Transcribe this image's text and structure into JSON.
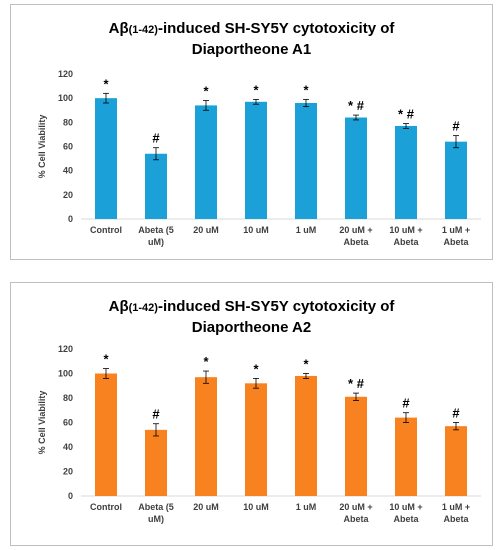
{
  "chart_data": [
    {
      "type": "bar",
      "title_prefix": "Aβ",
      "title_sub": "(1-42)",
      "title_rest": "-induced SH-SY5Y cytotoxicity of",
      "title_line2": "Diaportheone A1",
      "ylabel": "% Cell Viability",
      "ylim": [
        0,
        120
      ],
      "yticks": [
        "0",
        "20",
        "40",
        "60",
        "80",
        "100",
        "120"
      ],
      "categories": [
        [
          "Control"
        ],
        [
          "Abeta (5",
          "uM)"
        ],
        [
          "20 uM"
        ],
        [
          "10 uM"
        ],
        [
          "1 uM"
        ],
        [
          "20 uM +",
          "Abeta"
        ],
        [
          "10 uM +",
          "Abeta"
        ],
        [
          "1 uM +",
          "Abeta"
        ]
      ],
      "values": [
        100,
        54,
        94,
        97,
        96,
        84,
        77,
        64
      ],
      "errors": [
        4,
        5,
        4,
        2,
        3,
        2,
        2,
        5
      ],
      "annotations": [
        "*",
        "#",
        "*",
        "*",
        "*",
        "* #",
        "* #",
        "#"
      ],
      "color": "#1ba1d8",
      "grid": false
    },
    {
      "type": "bar",
      "title_prefix": "Aβ",
      "title_sub": "(1-42)",
      "title_rest": "-induced SH-SY5Y cytotoxicity of",
      "title_line2": "Diaportheone A2",
      "ylabel": "% Cell Viability",
      "ylim": [
        0,
        120
      ],
      "yticks": [
        "0",
        "20",
        "40",
        "60",
        "80",
        "100",
        "120"
      ],
      "categories": [
        [
          "Control"
        ],
        [
          "Abeta (5",
          "uM)"
        ],
        [
          "20 uM"
        ],
        [
          "10 uM"
        ],
        [
          "1 uM"
        ],
        [
          "20 uM +",
          "Abeta"
        ],
        [
          "10 uM +",
          "Abeta"
        ],
        [
          "1 uM +",
          "Abeta"
        ]
      ],
      "values": [
        100,
        54,
        97,
        92,
        98,
        81,
        64,
        57
      ],
      "errors": [
        4,
        5,
        5,
        4,
        2,
        3,
        4,
        3
      ],
      "annotations": [
        "*",
        "#",
        "*",
        "*",
        "*",
        "* #",
        "#",
        "#"
      ],
      "color": "#f7821f",
      "grid": false
    }
  ]
}
